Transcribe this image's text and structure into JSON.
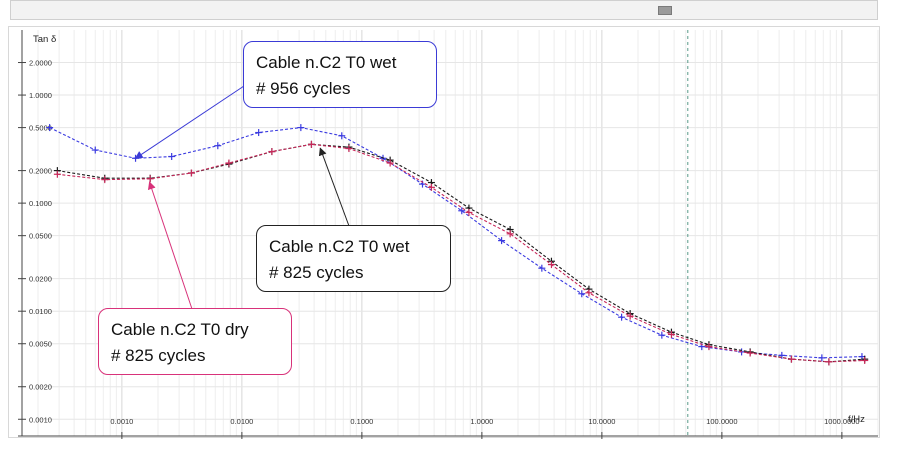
{
  "window": {
    "scroll_icon": "scrollbar-thumb"
  },
  "chart_data": {
    "type": "line",
    "ylabel": "Tan δ",
    "xlabel": "f/Hz",
    "x_scale": "log",
    "y_scale": "log",
    "xlim": [
      0.0002,
      2000
    ],
    "ylim": [
      0.0007,
      4.0
    ],
    "x_ticks": [
      {
        "value": 0.001,
        "label": "0.0010"
      },
      {
        "value": 0.01,
        "label": "0.0100"
      },
      {
        "value": 0.1,
        "label": "0.1000"
      },
      {
        "value": 1,
        "label": "1.0000"
      },
      {
        "value": 10,
        "label": "10.0000"
      },
      {
        "value": 100,
        "label": "100.0000"
      },
      {
        "value": 1000,
        "label": "1000.0000"
      }
    ],
    "y_ticks": [
      {
        "value": 2,
        "label": "2.0000"
      },
      {
        "value": 1,
        "label": "1.0000"
      },
      {
        "value": 0.5,
        "label": "0.5000"
      },
      {
        "value": 0.2,
        "label": "0.2000"
      },
      {
        "value": 0.1,
        "label": "0.1000"
      },
      {
        "value": 0.05,
        "label": "0.0500"
      },
      {
        "value": 0.02,
        "label": "0.0200"
      },
      {
        "value": 0.01,
        "label": "0.0100"
      },
      {
        "value": 0.005,
        "label": "0.0050"
      },
      {
        "value": 0.002,
        "label": "0.0020"
      },
      {
        "value": 0.001,
        "label": "0.0010"
      }
    ],
    "grid": true,
    "reference_line_x": 52,
    "series": [
      {
        "name": "Cable n.C2 T0 wet # 956 cycles",
        "color": "#3a3ae0",
        "x": [
          0.00025,
          0.0006,
          0.0013,
          0.0026,
          0.0063,
          0.0138,
          0.031,
          0.068,
          0.15,
          0.32,
          0.68,
          1.46,
          3.16,
          6.8,
          14.6,
          31.6,
          68,
          146,
          316,
          681,
          1470
        ],
        "y": [
          0.5,
          0.31,
          0.26,
          0.27,
          0.34,
          0.45,
          0.5,
          0.42,
          0.26,
          0.15,
          0.085,
          0.045,
          0.025,
          0.0145,
          0.0088,
          0.006,
          0.0047,
          0.0042,
          0.0039,
          0.0037,
          0.0038
        ]
      },
      {
        "name": "Cable n.C2 T0 wet # 825 cycles",
        "color": "#1a1a1a",
        "x": [
          0.00029,
          0.00072,
          0.00172,
          0.0038,
          0.0078,
          0.0178,
          0.038,
          0.078,
          0.172,
          0.38,
          0.78,
          1.72,
          3.8,
          7.8,
          17.2,
          38,
          78,
          172,
          380,
          780,
          1550
        ],
        "y": [
          0.2,
          0.17,
          0.17,
          0.19,
          0.23,
          0.3,
          0.35,
          0.33,
          0.25,
          0.155,
          0.09,
          0.057,
          0.029,
          0.016,
          0.0095,
          0.0064,
          0.0049,
          0.0042,
          0.0036,
          0.0034,
          0.0036
        ]
      },
      {
        "name": "Cable n.C2 T0 dry # 825 cycles",
        "color": "#c8285a",
        "x": [
          0.00029,
          0.00072,
          0.00172,
          0.0038,
          0.0078,
          0.0178,
          0.038,
          0.078,
          0.172,
          0.38,
          0.78,
          1.72,
          3.8,
          7.8,
          17.2,
          38,
          78,
          172,
          380,
          780,
          1550
        ],
        "y": [
          0.185,
          0.165,
          0.168,
          0.19,
          0.235,
          0.3,
          0.35,
          0.32,
          0.235,
          0.14,
          0.082,
          0.052,
          0.027,
          0.0148,
          0.009,
          0.0061,
          0.0047,
          0.0041,
          0.0036,
          0.0034,
          0.0035
        ]
      }
    ],
    "annotations": [
      {
        "lines": [
          "Cable n.C2 T0 wet",
          "# 956 cycles"
        ],
        "color": "#3b3bd6",
        "target": {
          "x": 0.0013,
          "y": 0.26
        }
      },
      {
        "lines": [
          "Cable n.C2 T0 wet",
          "# 825 cycles"
        ],
        "color": "#222222",
        "target": {
          "x": 0.045,
          "y": 0.35
        }
      },
      {
        "lines": [
          "Cable n.C2 T0 dry",
          "# 825 cycles"
        ],
        "color": "#d8327a",
        "target": {
          "x": 0.0017,
          "y": 0.17
        }
      }
    ]
  }
}
